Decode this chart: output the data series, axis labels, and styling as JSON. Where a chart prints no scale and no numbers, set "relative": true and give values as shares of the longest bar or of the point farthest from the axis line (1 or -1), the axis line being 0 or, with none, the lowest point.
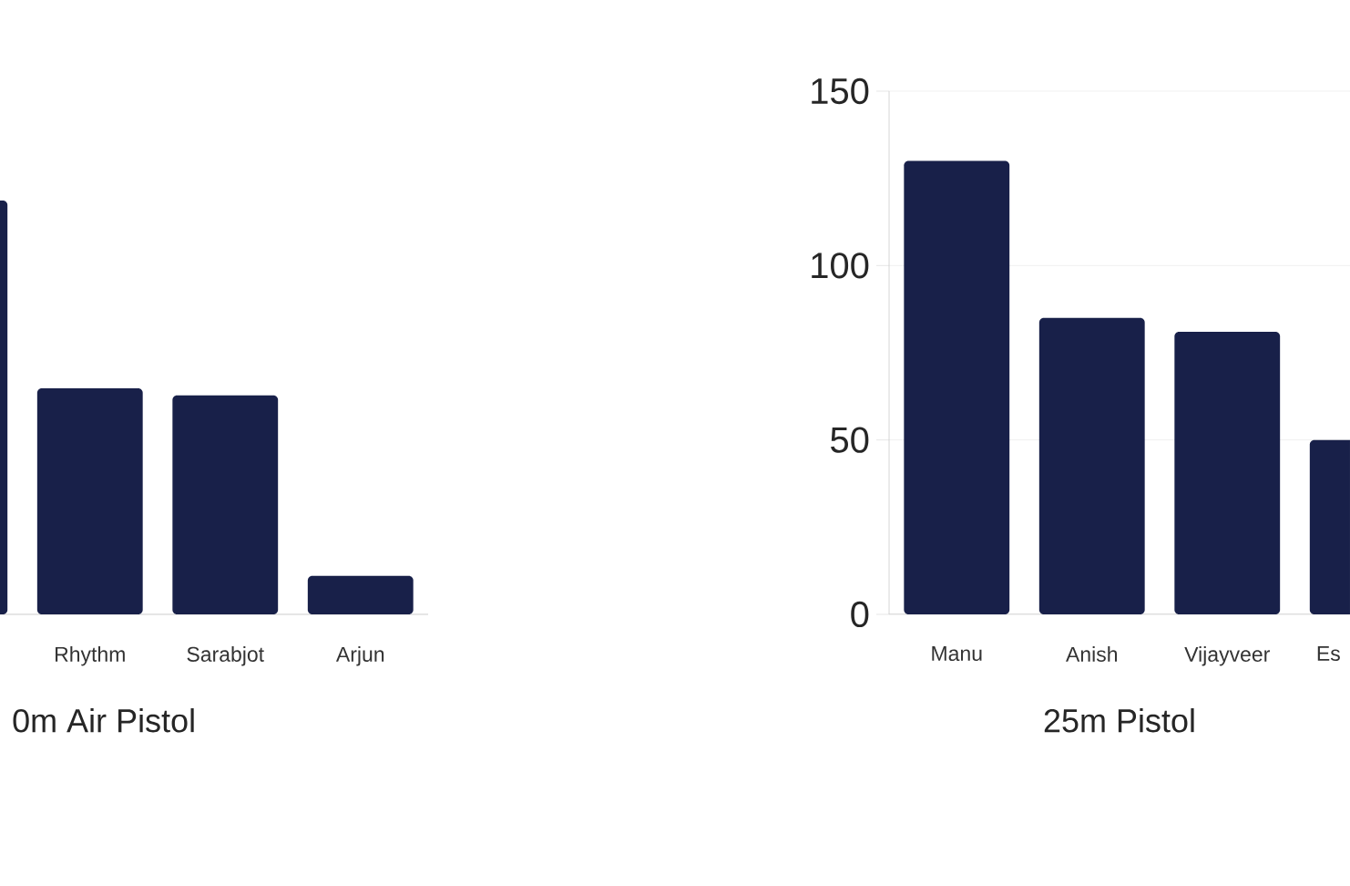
{
  "chart_data": [
    {
      "type": "bar",
      "xlabel": "0m Air Pistol",
      "categories": [
        null,
        "Rhythm",
        "Sarabjot",
        "Arjun"
      ],
      "values": [
        1,
        0.546,
        0.529,
        0.093
      ],
      "color": "#182049",
      "relative": true
    },
    {
      "type": "bar",
      "xlabel": "25m Pistol",
      "categories": [
        "Manu",
        "Anish",
        "Vijayveer",
        "Es"
      ],
      "values": [
        130,
        85,
        81,
        50
      ],
      "color": "#182049",
      "ylim": [
        0,
        150
      ],
      "yticks": [
        0,
        50,
        100,
        150
      ],
      "grid": "y"
    }
  ]
}
